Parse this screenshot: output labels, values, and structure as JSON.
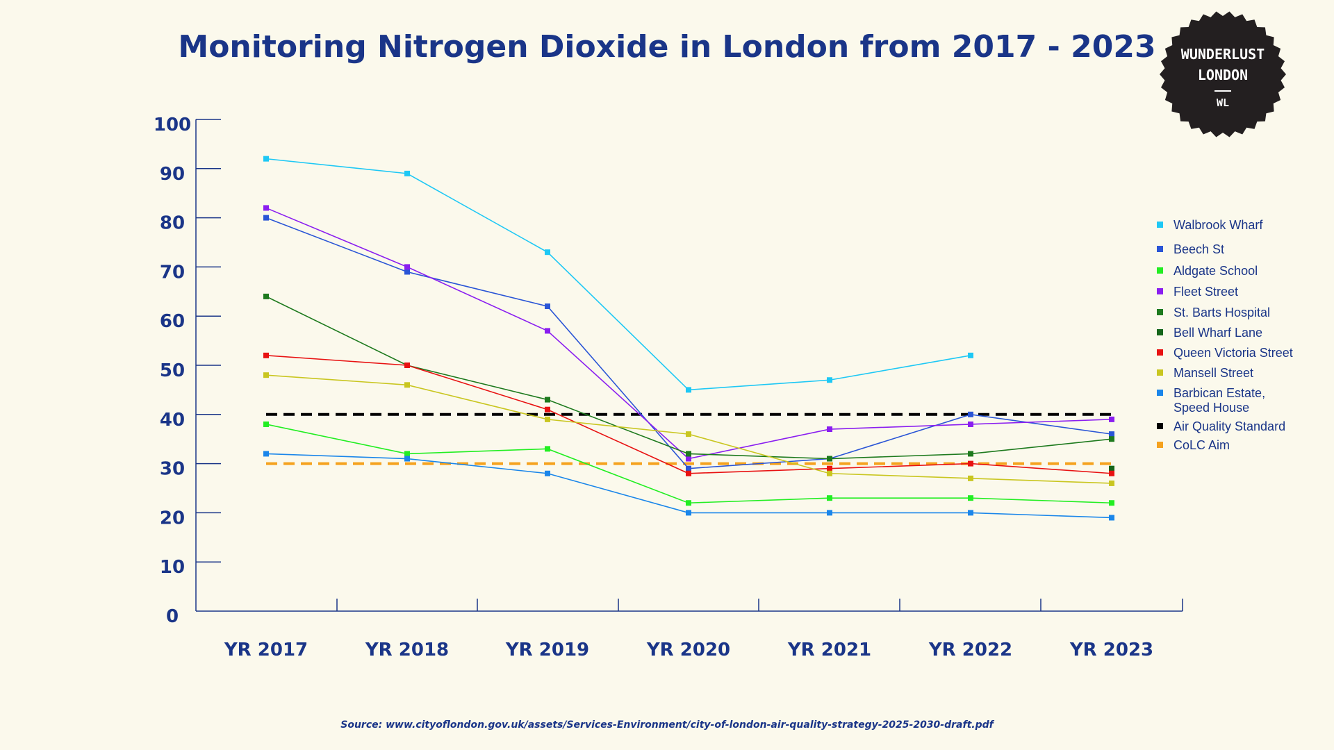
{
  "chart_data": {
    "type": "line",
    "title": "Monitoring Nitrogen Dioxide in London from 2017 - 2023",
    "categories": [
      "YR 2017",
      "YR 2018",
      "YR 2019",
      "YR 2020",
      "YR 2021",
      "YR 2022",
      "YR 2023"
    ],
    "ylim": [
      0,
      100
    ],
    "yticks": [
      0,
      10,
      20,
      30,
      40,
      50,
      60,
      70,
      80,
      90,
      100
    ],
    "grid": false,
    "legend_position": "right",
    "series": [
      {
        "name": "Walbrook Wharf",
        "color": "#1ec8f5",
        "values": [
          92,
          89,
          73,
          45,
          47,
          52,
          null
        ]
      },
      {
        "name": "Beech St",
        "color": "#2a55d6",
        "values": [
          80,
          69,
          62,
          29,
          31,
          40,
          36
        ]
      },
      {
        "name": "Aldgate School",
        "color": "#22ee22",
        "values": [
          38,
          32,
          33,
          22,
          23,
          23,
          22
        ]
      },
      {
        "name": "Fleet Street",
        "color": "#8a1ef0",
        "values": [
          82,
          70,
          57,
          31,
          37,
          38,
          39
        ]
      },
      {
        "name": "St. Barts Hospital",
        "color": "#1e7a1e",
        "values": [
          64,
          50,
          43,
          32,
          31,
          32,
          35
        ]
      },
      {
        "name": "Bell Wharf Lane",
        "color": "#15651a",
        "values": [
          null,
          null,
          null,
          null,
          null,
          null,
          29
        ]
      },
      {
        "name": "Queen Victoria Street",
        "color": "#e81212",
        "values": [
          52,
          50,
          41,
          28,
          29,
          30,
          28
        ]
      },
      {
        "name": "Mansell Street",
        "color": "#c9c620",
        "values": [
          48,
          46,
          39,
          36,
          28,
          27,
          26
        ]
      },
      {
        "name": "Barbican Estate, Speed House",
        "color": "#1a86ea",
        "values": [
          32,
          31,
          28,
          20,
          20,
          20,
          19
        ]
      },
      {
        "name": "Air Quality Standard",
        "color": "#000000",
        "style": "dashed",
        "values": [
          40,
          40,
          40,
          40,
          40,
          40,
          40
        ]
      },
      {
        "name": "CoLC Aim",
        "color": "#f5a21e",
        "style": "dashed",
        "values": [
          30,
          30,
          30,
          30,
          30,
          30,
          30
        ]
      }
    ],
    "source": "Source: www.cityoflondon.gov.uk/assets/Services-Environment/city-of-london-air-quality-strategy-2025-2030-draft.pdf"
  },
  "logo": {
    "line1": "WUNDERLUST",
    "line2": "LONDON",
    "initials": "WL",
    "bg_color": "#231f20"
  },
  "colors": {
    "background": "#fbf9ec",
    "text": "#1a3588"
  }
}
